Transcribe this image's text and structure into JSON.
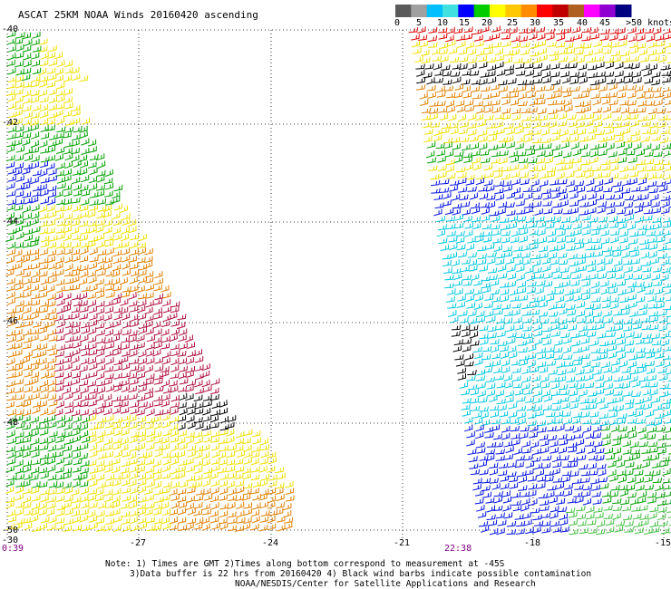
{
  "title": "ASCAT 25KM NOAA Winds 20160420 ascending",
  "legend": {
    "labels": [
      "0",
      "5",
      "10",
      "15",
      "20",
      "25",
      "30",
      "35",
      "40",
      "45",
      ">50 knots"
    ],
    "colors": [
      "#5a5a5a",
      "#a0a0a0",
      "#00bfff",
      "#40e0e0",
      "#0000ff",
      "#00cc00",
      "#ffff00",
      "#ffc800",
      "#ff8c00",
      "#ff0000",
      "#c00000",
      "#b06020",
      "#ff00ff",
      "#9000d0",
      "#000080"
    ]
  },
  "axes": {
    "lat_labels": [
      "-40",
      "-42",
      "-44",
      "-46",
      "-48",
      "-50"
    ],
    "lon_labels": [
      "-30",
      "-27",
      "-24",
      "-21",
      "-18",
      "-15"
    ]
  },
  "times": {
    "left": "0:39",
    "right": "22:38"
  },
  "notes": [
    "Note: 1) Times are GMT 2)Times along bottom correspond to measurement at -45S",
    "3)Data buffer is 22 hrs from 20160420 4) Black wind barbs indicate possible contamination",
    "NOAA/NESDIS/Center for Satellite Applications and Research"
  ]
}
